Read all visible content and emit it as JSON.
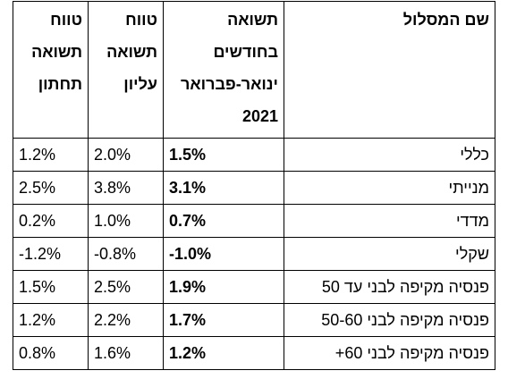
{
  "table": {
    "headers": {
      "name": [
        "שם המסלול"
      ],
      "return": [
        "תשואה",
        "בחודשים",
        "ינואר-פברואר",
        "2021"
      ],
      "upper": [
        "טווח",
        "תשואה",
        "עליון"
      ],
      "lower": [
        "טווח",
        "תשואה",
        "תחתון"
      ]
    },
    "rows": [
      {
        "name": "כללי",
        "return": "1.5%",
        "upper": "2.0%",
        "lower": "1.2%"
      },
      {
        "name": "מנייתי",
        "return": "3.1%",
        "upper": "3.8%",
        "lower": "2.5%"
      },
      {
        "name": "מדדי",
        "return": "0.7%",
        "upper": "1.0%",
        "lower": "0.2%"
      },
      {
        "name": "שקלי",
        "return": "-1.0%",
        "upper": "-0.8%",
        "lower": "-1.2%"
      },
      {
        "name": "פנסיה מקיפה לבני עד 50",
        "return": "1.9%",
        "upper": "2.5%",
        "lower": "1.5%"
      },
      {
        "name": "פנסיה מקיפה לבני 50-60",
        "return": "1.7%",
        "upper": "2.2%",
        "lower": "1.2%"
      },
      {
        "name": "פנסיה מקיפה לבני 60+",
        "return": "1.2%",
        "upper": "1.6%",
        "lower": "0.8%"
      }
    ]
  }
}
